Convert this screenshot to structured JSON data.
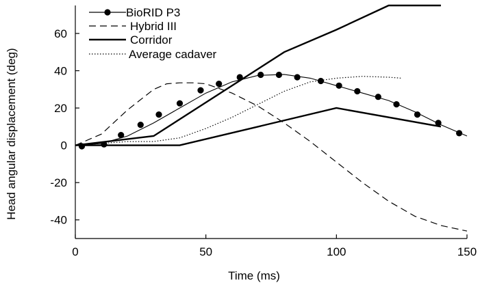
{
  "chart_data": {
    "type": "line",
    "title": "",
    "xlabel": "Time (ms)",
    "ylabel": "Head angular displacement (deg)",
    "xlim": [
      0,
      150
    ],
    "ylim": [
      -50,
      75
    ],
    "x_ticks": [
      0,
      50,
      100,
      150
    ],
    "y_ticks": [
      -40,
      -20,
      0,
      20,
      40,
      60
    ],
    "x_tick_labels": [
      "0",
      "50",
      "100",
      "150"
    ],
    "y_tick_labels": [
      "-40",
      "-20",
      "0",
      "20",
      "40",
      "60"
    ],
    "grid": false,
    "legend_position": "top-left",
    "series": [
      {
        "name": "BioRID P3",
        "style": "solid-markers",
        "color": "#000000",
        "x": [
          0,
          10,
          20,
          30,
          40,
          50,
          60,
          70,
          80,
          90,
          100,
          110,
          120,
          130,
          140,
          150
        ],
        "y": [
          0,
          1,
          5,
          12,
          20,
          28,
          34,
          37.5,
          38,
          36,
          32,
          28,
          24,
          18,
          11,
          5
        ],
        "markers_x": [
          2.5,
          11,
          17.5,
          25,
          32,
          40,
          48,
          55,
          63,
          71,
          78,
          85,
          94,
          101,
          108,
          116,
          123,
          131,
          139,
          147
        ],
        "markers_y": [
          -0.5,
          0.5,
          5.5,
          11,
          16.5,
          22.5,
          29.5,
          33,
          36.5,
          37.8,
          37.8,
          36.5,
          34.5,
          32,
          29,
          26,
          22,
          16.5,
          12,
          6.5
        ]
      },
      {
        "name": "Hybrid III",
        "style": "dashed",
        "color": "#000000",
        "x": [
          0,
          10,
          20,
          30,
          35,
          40,
          45,
          50,
          60,
          70,
          80,
          90,
          100,
          110,
          120,
          130,
          140,
          150
        ],
        "y": [
          0,
          6,
          19,
          30,
          33,
          33.5,
          33.5,
          33,
          28,
          21,
          12,
          2,
          -9,
          -20,
          -30,
          -38,
          -43,
          -46
        ]
      },
      {
        "name": "Corridor",
        "style": "solid-thick",
        "color": "#000000",
        "polylines": [
          {
            "x": [
              0,
              30,
              80,
              100,
              120,
              140
            ],
            "y": [
              0,
              5,
              50,
              62,
              75,
              75
            ]
          },
          {
            "x": [
              0,
              40,
              100,
              140
            ],
            "y": [
              0,
              0,
              20,
              10
            ]
          }
        ]
      },
      {
        "name": "Average cadaver",
        "style": "dotted",
        "color": "#000000",
        "x": [
          0,
          10,
          20,
          30,
          40,
          50,
          60,
          70,
          80,
          90,
          100,
          110,
          120,
          125
        ],
        "y": [
          0,
          1,
          2,
          2,
          4,
          9,
          15,
          22,
          29,
          34,
          36,
          37,
          36.5,
          36
        ]
      }
    ]
  }
}
